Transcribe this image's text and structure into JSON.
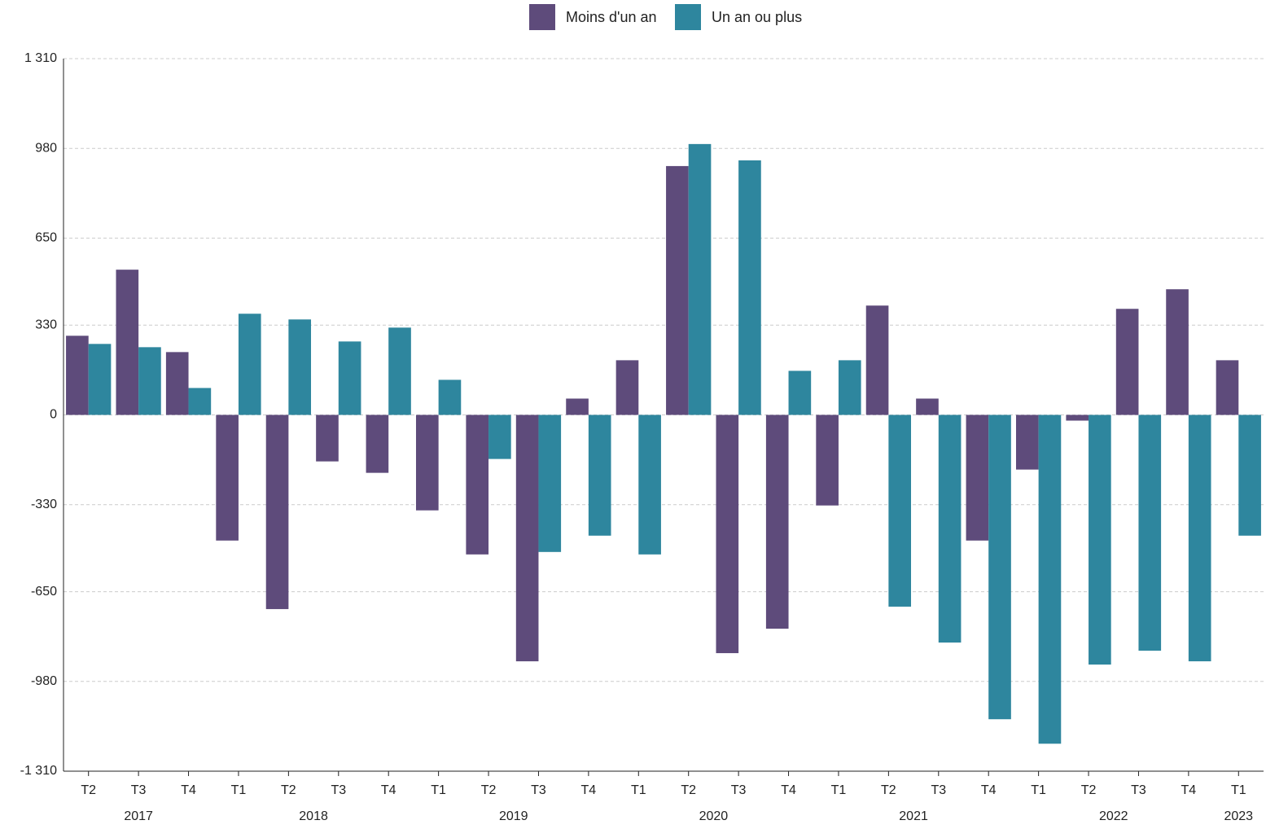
{
  "chart_data": {
    "type": "bar",
    "categories": [
      "T2",
      "T3",
      "T4",
      "T1",
      "T2",
      "T3",
      "T4",
      "T1",
      "T2",
      "T3",
      "T4",
      "T1",
      "T2",
      "T3",
      "T4",
      "T1",
      "T2",
      "T3",
      "T4",
      "T1",
      "T2",
      "T3",
      "T4",
      "T1"
    ],
    "groups": [
      {
        "label": "2017",
        "span": 3
      },
      {
        "label": "2018",
        "span": 4
      },
      {
        "label": "2019",
        "span": 4
      },
      {
        "label": "2020",
        "span": 4
      },
      {
        "label": "2021",
        "span": 4
      },
      {
        "label": "2022",
        "span": 4
      },
      {
        "label": "2023",
        "span": 1
      }
    ],
    "series": [
      {
        "name": "Moins d'un an",
        "color": "#5e4b7b",
        "values": [
          291,
          534,
          231,
          -462,
          -714,
          -171,
          -213,
          -351,
          -513,
          -906,
          60,
          201,
          915,
          -876,
          -786,
          -333,
          402,
          60,
          -462,
          -201,
          -21,
          390,
          462,
          201
        ]
      },
      {
        "name": "Un an ou plus",
        "color": "#2e869e",
        "values": [
          261,
          249,
          99,
          372,
          351,
          270,
          321,
          129,
          -162,
          -504,
          -444,
          -513,
          996,
          936,
          162,
          201,
          -705,
          -837,
          -1119,
          -1209,
          -918,
          -867,
          -906,
          -444
        ]
      }
    ],
    "ylim": [
      -1310,
      1310
    ],
    "yticks": [
      {
        "value": -1310,
        "label": "-1 310"
      },
      -980,
      -650,
      -330,
      0,
      330,
      650,
      980,
      {
        "value": 1310,
        "label": "1 310"
      }
    ],
    "grid": true,
    "legend": "top"
  }
}
